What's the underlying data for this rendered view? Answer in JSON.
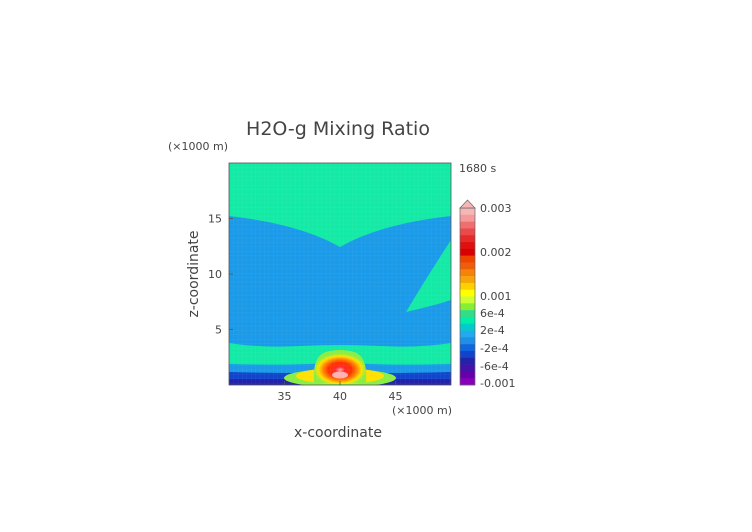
{
  "chart_data": {
    "type": "heatmap",
    "title": "H2O-g Mixing Ratio",
    "time_label": "1680 s",
    "xlabel": "x-coordinate",
    "ylabel": "z-coordinate",
    "x_unit": "(×1000 m)",
    "y_unit": "(×1000 m)",
    "xlim": [
      30,
      50
    ],
    "ylim": [
      0,
      20
    ],
    "x_ticks": [
      35,
      40,
      45
    ],
    "y_ticks": [
      5,
      10,
      15
    ],
    "grid": true,
    "legend_placement": "right",
    "colorbar": {
      "labels": [
        "0.003",
        "0.002",
        "0.001",
        "6e-4",
        "2e-4",
        "-2e-4",
        "-6e-4",
        "-0.001"
      ],
      "colors": [
        "#f7b6b6",
        "#f49a9a",
        "#ef6f6f",
        "#ea4a4a",
        "#e52a2a",
        "#e01010",
        "#d80000",
        "#ee4400",
        "#f05d0a",
        "#f5830a",
        "#f7a40a",
        "#ffd000",
        "#ffff00",
        "#ccff33",
        "#88ee33",
        "#33dd88",
        "#00eeaa",
        "#00cccc",
        "#22aaee",
        "#1f8fe8",
        "#1166dd",
        "#1144cc",
        "#2222aa",
        "#4411aa",
        "#6600aa",
        "#8800bb"
      ]
    },
    "regions": [
      {
        "name": "upper-band",
        "value_class": "2e-4 to -2e-4",
        "color": "#13eaa5"
      },
      {
        "name": "middle-layer",
        "value_class": "-2e-4",
        "color": "#1a9ae8"
      },
      {
        "name": "lower-band",
        "value_class": "2e-4 to -2e-4",
        "color": "#13eaa5"
      },
      {
        "name": "core",
        "x": 40,
        "z": 1,
        "value_class": "0.002",
        "color": "#e51a1a"
      },
      {
        "name": "surface",
        "value_class": "-6e-4",
        "color": "#2233bb"
      }
    ]
  }
}
